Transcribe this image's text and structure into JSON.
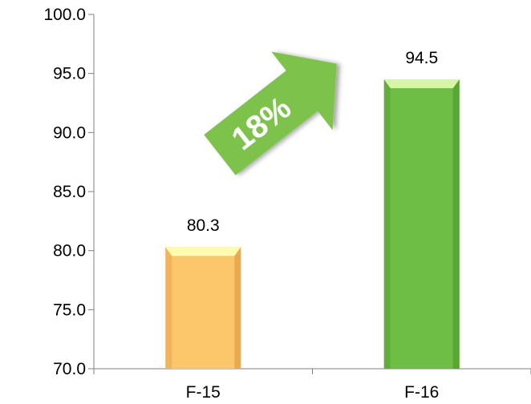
{
  "chart_data": {
    "type": "bar",
    "categories": [
      "F-15",
      "F-16"
    ],
    "values": [
      80.3,
      94.5
    ],
    "value_labels": [
      "80.3",
      "94.5"
    ],
    "ylim": [
      70.0,
      100.0
    ],
    "yticks": [
      70.0,
      75.0,
      80.0,
      85.0,
      90.0,
      95.0,
      100.0
    ],
    "ytick_labels": [
      "70.0",
      "75.0",
      "80.0",
      "85.0",
      "90.0",
      "95.0",
      "100.0"
    ],
    "grid": false,
    "legend": "none",
    "colors": {
      "F-15": {
        "face": "#FCC66A",
        "top": "#FFFBB0",
        "dark": "#E7A64E"
      },
      "F-16": {
        "face": "#6EBE45",
        "top": "#D8F5A6",
        "dark": "#55A331"
      },
      "arrow": "#7DC24B",
      "axis": "#808080"
    },
    "annotation": {
      "text": "18%",
      "icon": "up-right-arrow-icon"
    }
  }
}
